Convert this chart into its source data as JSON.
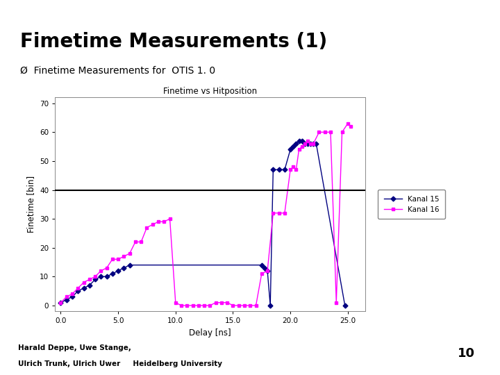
{
  "title_main": "Fimetime Measurements (1)",
  "subtitle": "Ø  Finetime Measurements for  OTIS 1. 0",
  "chart_title": "Finetime vs Hitposition",
  "xlabel": "Delay [ns]",
  "ylabel": "Finetime [bin]",
  "xlim": [
    -0.5,
    26.5
  ],
  "ylim": [
    -2,
    72
  ],
  "xticks": [
    0.0,
    5.0,
    10.0,
    15.0,
    20.0,
    25.0
  ],
  "yticks": [
    0,
    10,
    20,
    30,
    40,
    50,
    60,
    70
  ],
  "hline_y": 40,
  "footer_text1": "Harald Deppe, Uwe Stange,",
  "footer_text2": "Ulrich Trunk, Ulrich Uwer     Heidelberg University",
  "page_number": "10",
  "legend_entries": [
    "Kanal 15",
    "Kanal 16"
  ],
  "kanal15_color": "#000080",
  "kanal16_color": "#ff00ff",
  "background_color": "#ffffff",
  "yellow_color": "#f0c000",
  "title_fontsize": 20,
  "subtitle_fontsize": 10,
  "kanal15_x": [
    0.0,
    0.5,
    1.0,
    1.5,
    2.0,
    2.5,
    3.0,
    3.5,
    4.0,
    4.5,
    5.0,
    5.5,
    6.0,
    17.5,
    17.75,
    18.0,
    18.25,
    18.5,
    19.0,
    19.5,
    20.0,
    20.25,
    20.5,
    20.75,
    21.0,
    21.25,
    21.5,
    21.75,
    22.0,
    22.25,
    24.75
  ],
  "kanal15_y": [
    1,
    2,
    3,
    5,
    6,
    7,
    9,
    10,
    10,
    11,
    12,
    13,
    14,
    14,
    13,
    12,
    0,
    47,
    47,
    47,
    54,
    55,
    56,
    57,
    57,
    56,
    56,
    56,
    56,
    56,
    0
  ],
  "kanal16_x": [
    0.0,
    0.5,
    1.0,
    1.5,
    2.0,
    2.5,
    3.0,
    3.5,
    4.0,
    4.5,
    5.0,
    5.5,
    6.0,
    6.5,
    7.0,
    7.5,
    8.0,
    8.5,
    9.0,
    9.5,
    10.0,
    10.5,
    11.0,
    11.5,
    12.0,
    12.5,
    13.0,
    13.5,
    14.0,
    14.5,
    15.0,
    15.5,
    16.0,
    16.5,
    17.0,
    17.5,
    18.0,
    18.5,
    19.0,
    19.5,
    20.0,
    20.25,
    20.5,
    20.75,
    21.0,
    21.25,
    21.5,
    21.75,
    22.0,
    22.5,
    23.0,
    23.5,
    24.0,
    24.5,
    25.0,
    25.25
  ],
  "kanal16_y": [
    1,
    3,
    4,
    6,
    8,
    9,
    10,
    12,
    13,
    16,
    16,
    17,
    18,
    22,
    22,
    27,
    28,
    29,
    29,
    30,
    1,
    0,
    0,
    0,
    0,
    0,
    0,
    1,
    1,
    1,
    0,
    0,
    0,
    0,
    0,
    11,
    12,
    32,
    32,
    32,
    47,
    48,
    47,
    54,
    55,
    56,
    57,
    56,
    56,
    60,
    60,
    60,
    1,
    60,
    63,
    62
  ]
}
